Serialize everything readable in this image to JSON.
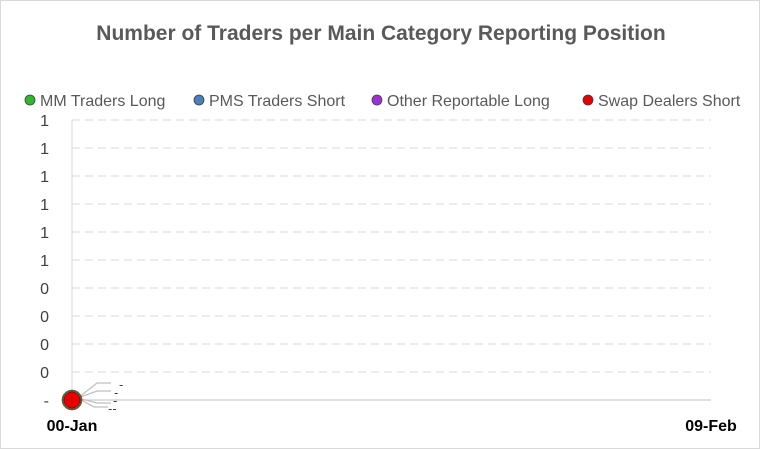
{
  "chart_data": {
    "type": "scatter",
    "title": "Number of Traders per Main Category Reporting Position",
    "legend_position": "top",
    "series": [
      {
        "name": "MM Traders Long",
        "color": "#2eb82e",
        "points": [
          {
            "x": "00-Jan",
            "y": 0
          }
        ]
      },
      {
        "name": "PMS Traders Short",
        "color": "#4a7fc1",
        "points": [
          {
            "x": "00-Jan",
            "y": 0
          }
        ]
      },
      {
        "name": "Other Reportable Long",
        "color": "#9b30d9",
        "points": [
          {
            "x": "00-Jan",
            "y": 0
          }
        ]
      },
      {
        "name": "Swap Dealers Short",
        "color": "#e60000",
        "points": [
          {
            "x": "00-Jan",
            "y": 0
          }
        ]
      }
    ],
    "x_ticks": [
      "00-Jan",
      "09-Feb"
    ],
    "y_ticks": [
      "-",
      "0",
      "0",
      "0",
      "0",
      "1",
      "1",
      "1",
      "1",
      "1",
      "1"
    ],
    "data_labels": [
      "-",
      "-",
      "-",
      "--"
    ],
    "grid": true,
    "xlabel": "",
    "ylabel": ""
  }
}
